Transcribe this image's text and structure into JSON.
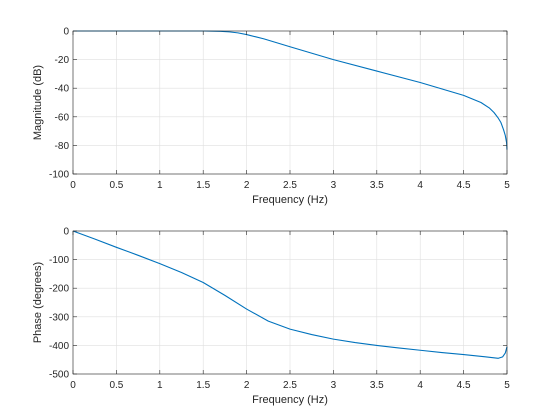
{
  "chart_data": [
    {
      "type": "line",
      "xlabel": "Frequency (Hz)",
      "ylabel": "Magnitude (dB)",
      "xlim": [
        0,
        5
      ],
      "ylim": [
        -100,
        0
      ],
      "xticks": [
        0,
        0.5,
        1,
        1.5,
        2,
        2.5,
        3,
        3.5,
        4,
        4.5,
        5
      ],
      "yticks": [
        0,
        -20,
        -40,
        -60,
        -80,
        -100
      ],
      "xtick_labels": [
        "0",
        "0.5",
        "1",
        "1.5",
        "2",
        "2.5",
        "3",
        "3.5",
        "4",
        "4.5",
        "5"
      ],
      "ytick_labels": [
        "0",
        "-20",
        "-40",
        "-60",
        "-80",
        "-100"
      ],
      "grid": true,
      "color": "#0072bd",
      "x": [
        0,
        0.5,
        1.0,
        1.5,
        1.7,
        1.8,
        1.9,
        2.0,
        2.1,
        2.2,
        2.5,
        3.0,
        3.5,
        4.0,
        4.5,
        4.7,
        4.8,
        4.85,
        4.9,
        4.93,
        4.96,
        4.98,
        4.995,
        5.0
      ],
      "y": [
        0,
        0,
        0,
        0,
        -0.2,
        -0.6,
        -1.3,
        -2.5,
        -4.0,
        -5.5,
        -11,
        -20,
        -28,
        -36,
        -45,
        -50,
        -54,
        -57,
        -61,
        -64,
        -69,
        -73,
        -78,
        -83
      ]
    },
    {
      "type": "line",
      "xlabel": "Frequency (Hz)",
      "ylabel": "Phase (degrees)",
      "xlim": [
        0,
        5
      ],
      "ylim": [
        -500,
        0
      ],
      "xticks": [
        0,
        0.5,
        1,
        1.5,
        2,
        2.5,
        3,
        3.5,
        4,
        4.5,
        5
      ],
      "yticks": [
        0,
        -100,
        -200,
        -300,
        -400,
        -500
      ],
      "xtick_labels": [
        "0",
        "0.5",
        "1",
        "1.5",
        "2",
        "2.5",
        "3",
        "3.5",
        "4",
        "4.5",
        "5"
      ],
      "ytick_labels": [
        "0",
        "-100",
        "-200",
        "-300",
        "-400",
        "-500"
      ],
      "grid": true,
      "color": "#0072bd",
      "x": [
        0,
        0.25,
        0.5,
        0.75,
        1.0,
        1.25,
        1.5,
        1.75,
        2.0,
        2.25,
        2.5,
        2.75,
        3.0,
        3.25,
        3.5,
        3.75,
        4.0,
        4.25,
        4.5,
        4.75,
        4.9,
        4.95,
        4.98,
        5.0
      ],
      "y": [
        0,
        -28,
        -57,
        -85,
        -114,
        -145,
        -180,
        -225,
        -273,
        -315,
        -343,
        -362,
        -378,
        -390,
        -400,
        -409,
        -417,
        -425,
        -432,
        -440,
        -445,
        -440,
        -427,
        -405
      ]
    }
  ]
}
